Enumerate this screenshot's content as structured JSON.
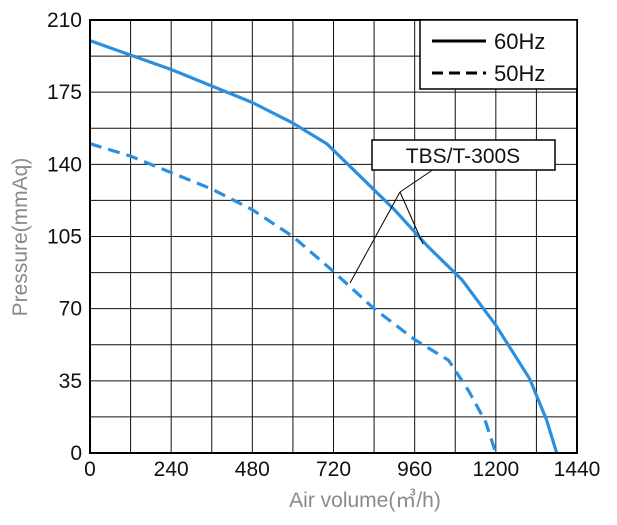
{
  "chart_data": {
    "type": "line",
    "title": "",
    "xlabel": "Air volume(㎥/h)",
    "ylabel": "Pressure(mmAq)",
    "xlim": [
      0,
      1440
    ],
    "ylim": [
      0,
      210
    ],
    "x_ticks": [
      0,
      240,
      480,
      720,
      960,
      1200,
      1440
    ],
    "y_ticks": [
      0,
      35,
      70,
      105,
      140,
      175,
      210
    ],
    "x_tick_labels": [
      "0",
      "240",
      "480",
      "720",
      "960",
      "1200",
      "1440"
    ],
    "y_tick_labels": [
      "0",
      "35",
      "70",
      "105",
      "140",
      "175",
      "210"
    ],
    "grid": true,
    "legend_position": "top-right",
    "legend": [
      {
        "label": "60Hz",
        "style": "solid"
      },
      {
        "label": "50Hz",
        "style": "dashed"
      }
    ],
    "annotation": "TBS/T-300S",
    "series_color": "#2b8fe0",
    "series": [
      {
        "name": "60Hz",
        "style": "solid",
        "x": [
          0,
          120,
          240,
          360,
          480,
          600,
          700,
          800,
          900,
          1000,
          1100,
          1200,
          1300,
          1350,
          1380
        ],
        "y": [
          200,
          193,
          186,
          178,
          170,
          160,
          150,
          134,
          118,
          100,
          84,
          62,
          36,
          16,
          0
        ]
      },
      {
        "name": "50Hz",
        "style": "dashed",
        "x": [
          0,
          120,
          240,
          360,
          480,
          600,
          720,
          840,
          960,
          1060,
          1120,
          1170,
          1200
        ],
        "y": [
          150,
          144,
          136,
          128,
          118,
          105,
          88,
          70,
          55,
          45,
          30,
          15,
          0
        ]
      }
    ]
  }
}
